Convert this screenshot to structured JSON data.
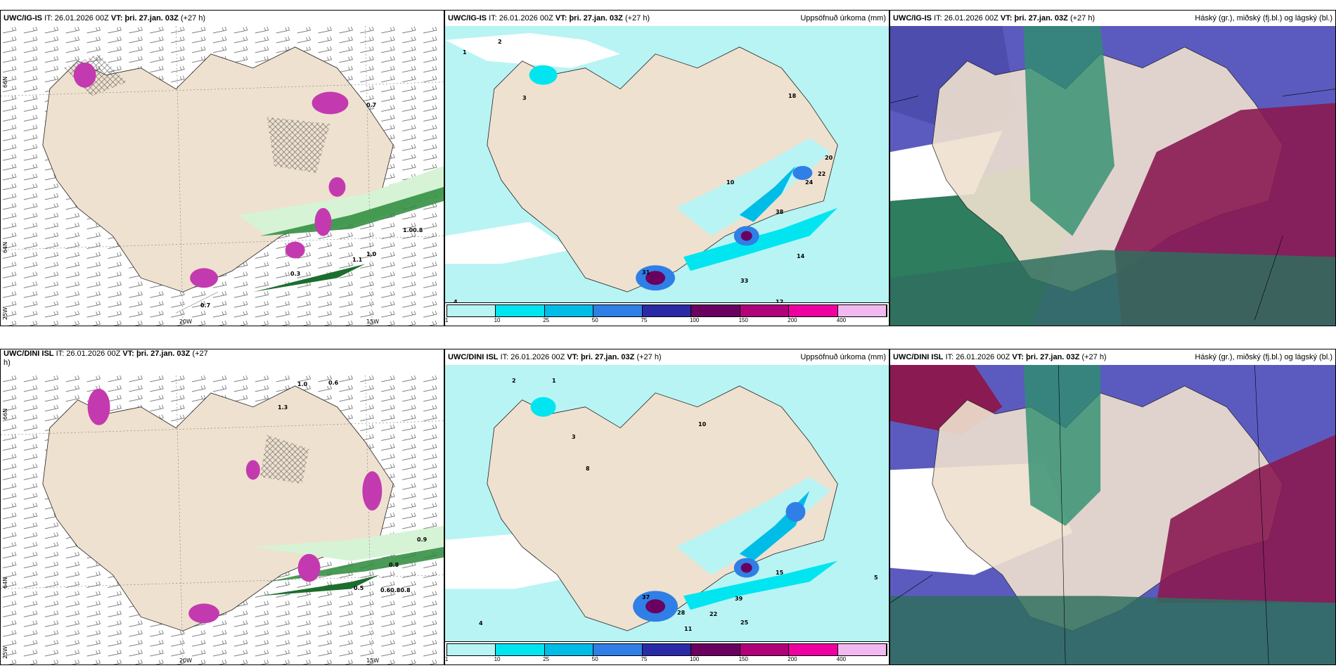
{
  "panels": [
    {
      "model": "UWC/IG-IS",
      "it_label": "IT:",
      "it_value": "26.01.2026 00Z",
      "vt_label": "VT:",
      "vt_value": "þri. 27.jan. 03Z",
      "lead": "(+27 h)",
      "right_title": "",
      "lat_labels": [
        "66N",
        "64N"
      ],
      "lon_labels": [
        "25W",
        "20W",
        "15W"
      ],
      "values": [
        "0.7",
        "1.0",
        "1.00.8",
        "0.3",
        "0.7",
        "1.1"
      ]
    },
    {
      "model": "UWC/IG-IS",
      "it_label": "IT:",
      "it_value": "26.01.2026 00Z",
      "vt_label": "VT:",
      "vt_value": "þri. 27.jan. 03Z",
      "lead": "(+27 h)",
      "right_title": "Uppsöfnuð úrkoma (mm)",
      "values": [
        "1",
        "2",
        "3",
        "4",
        "10",
        "12",
        "14",
        "18",
        "20",
        "22",
        "24",
        "33",
        "38",
        "31"
      ]
    },
    {
      "model": "UWC/IG-IS",
      "it_label": "IT:",
      "it_value": "26.01.2026 00Z",
      "vt_label": "VT:",
      "vt_value": "þri. 27.jan. 03Z",
      "lead": "(+27 h)",
      "right_title": "Háský (gr.), miðský (fj.bl.) og lágský (bl.)"
    },
    {
      "model": "UWC/DINI ISL",
      "it_label": "IT:",
      "it_value": "26.01.2026 00Z",
      "vt_label": "VT:",
      "vt_value": "þri. 27.jan. 03Z",
      "lead": "(+27",
      "lead_wrap": "h)",
      "right_title": "",
      "lat_labels": [
        "66N",
        "64N"
      ],
      "lon_labels": [
        "25W",
        "20W",
        "15W"
      ],
      "values": [
        "0.6",
        "1.0",
        "0.8",
        "0.9",
        "0.5",
        "0.60.80.8",
        "1.3"
      ]
    },
    {
      "model": "UWC/DINI ISL",
      "it_label": "IT:",
      "it_value": "26.01.2026 00Z",
      "vt_label": "VT:",
      "vt_value": "þri. 27.jan. 03Z",
      "lead": "(+27 h)",
      "right_title": "Uppsöfnuð úrkoma (mm)",
      "values": [
        "1",
        "2",
        "3",
        "4",
        "5",
        "8",
        "10",
        "15",
        "22",
        "25",
        "28",
        "37",
        "39",
        "11"
      ]
    },
    {
      "model": "UWC/DINI ISL",
      "it_label": "IT:",
      "it_value": "26.01.2026 00Z",
      "vt_label": "VT:",
      "vt_value": "þri. 27.jan. 03Z",
      "lead": "(+27 h)",
      "right_title": "Háský (gr.), miðský (fj.bl.) og lágský (bl.)"
    }
  ],
  "colorbar": {
    "ticks": [
      "1",
      "10",
      "25",
      "50",
      "75",
      "100",
      "150",
      "200",
      "400"
    ],
    "colors": [
      "#b8f4f4",
      "#00e5f0",
      "#00bde8",
      "#2f7fe6",
      "#2a2aa6",
      "#6a0060",
      "#b0007a",
      "#ee00a0",
      "#f2b8f0"
    ]
  },
  "colors": {
    "land": "#efe1cf",
    "sea_precip": "#b8f4f4",
    "cloud_high": "#8a1a52",
    "cloud_mid": "#4a4aa8",
    "cloud_low": "#2e7d5e",
    "green_band": "#2a8a3a"
  }
}
